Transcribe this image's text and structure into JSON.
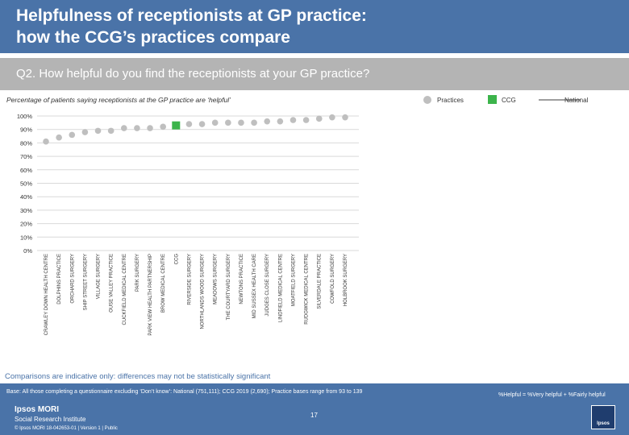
{
  "header": {
    "title_line1": "Helpfulness of receptionists at GP practice:",
    "title_line2": "how the CCG’s practices compare",
    "question": "Q2. How helpful do you find the receptionists at your GP practice?"
  },
  "subtitle": "Percentage of patients saying receptionists at the GP practice are ‘helpful’",
  "legend": {
    "practices": "Practices",
    "ccg": "CCG",
    "national": "National"
  },
  "colors": {
    "header": "#4a73a8",
    "marker": "#bfbfbf",
    "ccg": "#3cb44b",
    "national": "#9e9e9e",
    "grid": "#d9d9d9"
  },
  "chart_data": {
    "type": "scatter",
    "title": "Percentage of patients saying receptionists at the GP practice are ‘helpful’",
    "xlabel": "",
    "ylabel": "",
    "ylim": [
      0,
      100
    ],
    "yticks": [
      "0%",
      "10%",
      "20%",
      "30%",
      "40%",
      "50%",
      "60%",
      "70%",
      "80%",
      "90%",
      "100%"
    ],
    "categories": [
      "CRAWLEY DOWN HEALTH CENTRE",
      "DOLPHINS PRACTICE",
      "ORCHARD SURGERY",
      "SHIP STREET SURGERY",
      "VILLAGE SURGERY",
      "OUSE VALLEY PRACTICE",
      "CUCKFIELD MEDICAL CENTRE",
      "PARK SURGERY",
      "PARK VIEW HEALTH PARTNERSHIP",
      "BROW MEDICAL CENTRE",
      "CCG",
      "RIVERSIDE SURGERY",
      "NORTHLANDS WOOD SURGERY",
      "MEADOWS SURGERY",
      "THE COURTYARD SURGERY",
      "NEWTONS PRACTICE",
      "MID SUSSEX HEALTH CARE",
      "JUDGES CLOSE SURGERY",
      "LINDFIELD MEDICAL CENTRE",
      "MOATFIELD SURGERY",
      "RUDGWICK MEDICAL CENTRE",
      "SILVERDALE PRACTICE",
      "COWFOLD SURGERY",
      "HOLBROOK SURGERY"
    ],
    "values": [
      81,
      84,
      86,
      88,
      89,
      89,
      91,
      91,
      91,
      92,
      93,
      94,
      94,
      95,
      95,
      95,
      95,
      96,
      96,
      97,
      97,
      98,
      99,
      99
    ],
    "ccg_value": 93,
    "national_value": null
  },
  "note": "Comparisons are indicative only: differences may not be statistically significant",
  "footer": {
    "base": "Base: All those completing a questionnaire excluding ‘Don’t know’: National (751,111); CCG 2019 (2,690); Practice bases range from 93 to 139",
    "definition": "%Helpful = %Very helpful + %Fairly helpful",
    "logo_line1": "Ipsos MORI",
    "logo_line2": "Social Research Institute",
    "copyright": "© Ipsos MORI     18-042653-01 | Version 1 | Public",
    "page": "17",
    "brand": "Ipsos"
  }
}
